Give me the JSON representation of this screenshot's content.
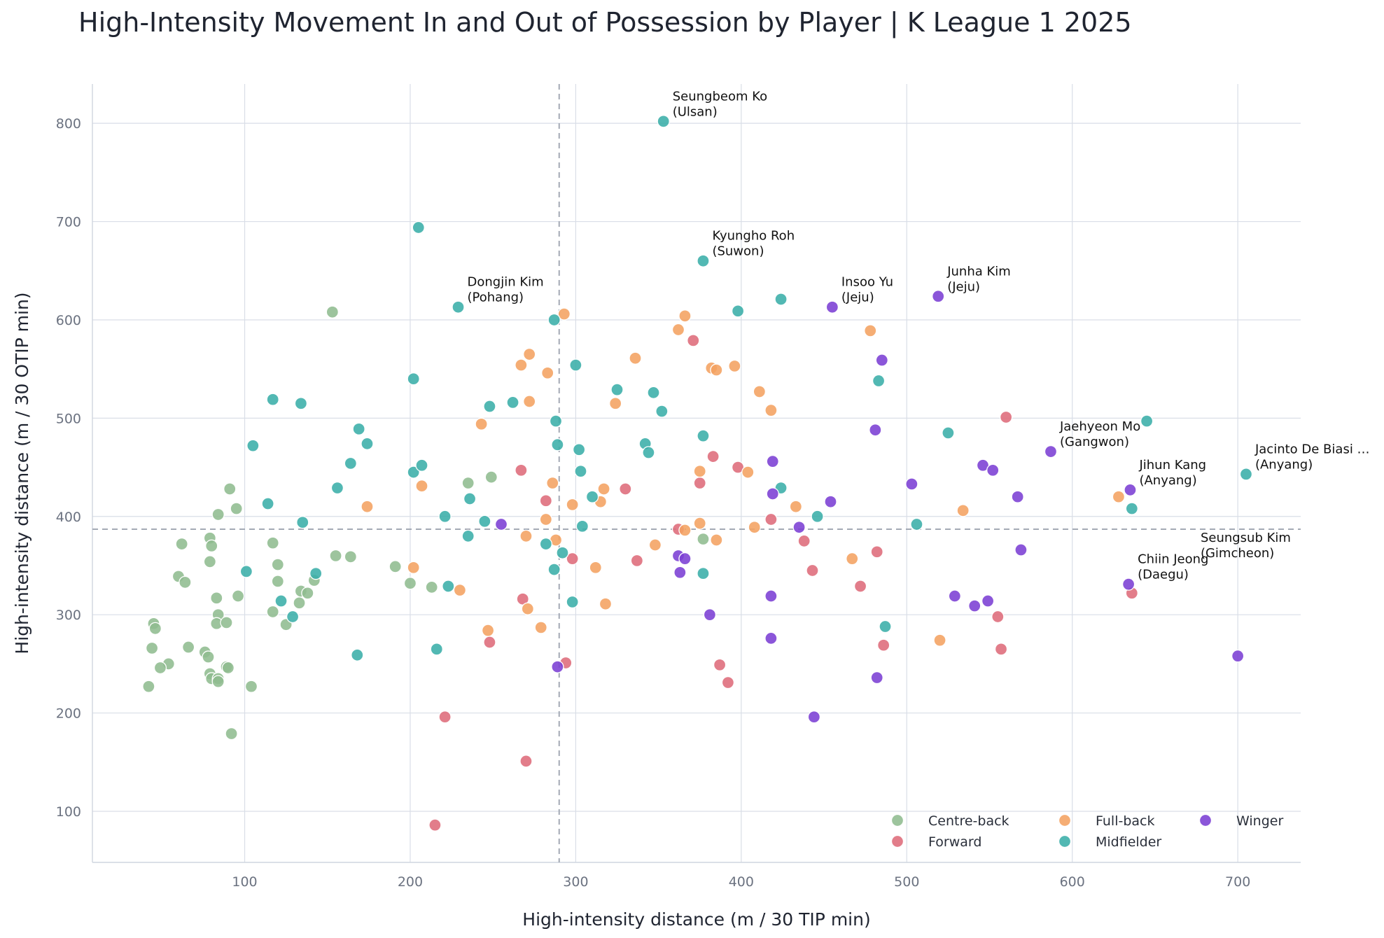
{
  "chart_data": {
    "type": "scatter",
    "title": "High-Intensity Movement In and Out of Possession by Player | K League 1 2025",
    "xlabel": "High-intensity distance (m / 30 TIP min)",
    "ylabel": "High-intensity distance (m / 30 OTIP min)",
    "xlim": [
      8,
      738
    ],
    "ylim": [
      48,
      840
    ],
    "xticks": [
      100,
      200,
      300,
      400,
      500,
      600,
      700
    ],
    "yticks": [
      100,
      200,
      300,
      400,
      500,
      600,
      700,
      800
    ],
    "grid": true,
    "legend_position": "lower-right",
    "reference_lines": {
      "x": 290,
      "y": 387
    },
    "series": [
      {
        "name": "Centre-back",
        "color": "#8fbc8f",
        "points": [
          [
            153,
            608
          ],
          [
            91,
            428
          ],
          [
            95,
            408
          ],
          [
            84,
            402
          ],
          [
            62,
            372
          ],
          [
            79,
            378
          ],
          [
            80,
            370
          ],
          [
            79,
            354
          ],
          [
            60,
            339
          ],
          [
            64,
            333
          ],
          [
            83,
            317
          ],
          [
            84,
            300
          ],
          [
            83,
            291
          ],
          [
            89,
            292
          ],
          [
            45,
            291
          ],
          [
            44,
            266
          ],
          [
            46,
            286
          ],
          [
            66,
            267
          ],
          [
            76,
            262
          ],
          [
            78,
            257
          ],
          [
            79,
            240
          ],
          [
            80,
            235
          ],
          [
            84,
            235
          ],
          [
            84,
            232
          ],
          [
            89,
            247
          ],
          [
            90,
            246
          ],
          [
            54,
            250
          ],
          [
            49,
            246
          ],
          [
            42,
            227
          ],
          [
            104,
            227
          ],
          [
            96,
            319
          ],
          [
            92,
            179
          ],
          [
            117,
            373
          ],
          [
            120,
            351
          ],
          [
            120,
            334
          ],
          [
            117,
            303
          ],
          [
            125,
            290
          ],
          [
            133,
            312
          ],
          [
            134,
            324
          ],
          [
            138,
            322
          ],
          [
            142,
            335
          ],
          [
            155,
            360
          ],
          [
            164,
            359
          ],
          [
            191,
            349
          ],
          [
            200,
            332
          ],
          [
            213,
            328
          ],
          [
            235,
            434
          ],
          [
            249,
            440
          ],
          [
            377,
            377
          ]
        ]
      },
      {
        "name": "Forward",
        "color": "#de6b7a",
        "points": [
          [
            267,
            447
          ],
          [
            282,
            416
          ],
          [
            298,
            357
          ],
          [
            330,
            428
          ],
          [
            268,
            316
          ],
          [
            248,
            272
          ],
          [
            294,
            251
          ],
          [
            221,
            196
          ],
          [
            270,
            151
          ],
          [
            215,
            86
          ],
          [
            337,
            355
          ],
          [
            362,
            387
          ],
          [
            371,
            579
          ],
          [
            375,
            434
          ],
          [
            383,
            461
          ],
          [
            398,
            450
          ],
          [
            418,
            397
          ],
          [
            438,
            375
          ],
          [
            443,
            345
          ],
          [
            472,
            329
          ],
          [
            482,
            364
          ],
          [
            486,
            269
          ],
          [
            387,
            249
          ],
          [
            392,
            231
          ],
          [
            555,
            298
          ],
          [
            557,
            265
          ],
          [
            560,
            501
          ],
          [
            636,
            322
          ]
        ]
      },
      {
        "name": "Full-back",
        "color": "#f4a261",
        "points": [
          [
            174,
            410
          ],
          [
            202,
            348
          ],
          [
            207,
            431
          ],
          [
            230,
            325
          ],
          [
            243,
            494
          ],
          [
            247,
            284
          ],
          [
            267,
            554
          ],
          [
            272,
            565
          ],
          [
            270,
            380
          ],
          [
            271,
            306
          ],
          [
            272,
            517
          ],
          [
            279,
            287
          ],
          [
            282,
            397
          ],
          [
            283,
            546
          ],
          [
            286,
            434
          ],
          [
            288,
            376
          ],
          [
            293,
            606
          ],
          [
            298,
            412
          ],
          [
            312,
            348
          ],
          [
            315,
            415
          ],
          [
            317,
            428
          ],
          [
            318,
            311
          ],
          [
            324,
            515
          ],
          [
            336,
            561
          ],
          [
            348,
            371
          ],
          [
            362,
            590
          ],
          [
            366,
            604
          ],
          [
            366,
            386
          ],
          [
            375,
            393
          ],
          [
            375,
            446
          ],
          [
            382,
            551
          ],
          [
            385,
            549
          ],
          [
            385,
            376
          ],
          [
            396,
            553
          ],
          [
            404,
            445
          ],
          [
            408,
            389
          ],
          [
            411,
            527
          ],
          [
            418,
            508
          ],
          [
            433,
            410
          ],
          [
            467,
            357
          ],
          [
            478,
            589
          ],
          [
            520,
            274
          ],
          [
            534,
            406
          ],
          [
            628,
            420
          ]
        ]
      },
      {
        "name": "Midfielder",
        "color": "#3aaea8",
        "points": [
          [
            105,
            472
          ],
          [
            101,
            344
          ],
          [
            114,
            413
          ],
          [
            117,
            519
          ],
          [
            122,
            314
          ],
          [
            129,
            298
          ],
          [
            134,
            515
          ],
          [
            135,
            394
          ],
          [
            143,
            342
          ],
          [
            156,
            429
          ],
          [
            164,
            454
          ],
          [
            168,
            259
          ],
          [
            169,
            489
          ],
          [
            174,
            474
          ],
          [
            202,
            445
          ],
          [
            202,
            540
          ],
          [
            205,
            694
          ],
          [
            207,
            452
          ],
          [
            216,
            265
          ],
          [
            221,
            400
          ],
          [
            223,
            329
          ],
          [
            229,
            613
          ],
          [
            235,
            380
          ],
          [
            236,
            418
          ],
          [
            245,
            395
          ],
          [
            248,
            512
          ],
          [
            262,
            516
          ],
          [
            282,
            372
          ],
          [
            287,
            600
          ],
          [
            287,
            346
          ],
          [
            288,
            497
          ],
          [
            289,
            473
          ],
          [
            292,
            363
          ],
          [
            298,
            313
          ],
          [
            300,
            554
          ],
          [
            302,
            468
          ],
          [
            303,
            446
          ],
          [
            304,
            390
          ],
          [
            310,
            420
          ],
          [
            325,
            529
          ],
          [
            342,
            474
          ],
          [
            344,
            465
          ],
          [
            347,
            526
          ],
          [
            352,
            507
          ],
          [
            353,
            802
          ],
          [
            377,
            660
          ],
          [
            377,
            482
          ],
          [
            377,
            342
          ],
          [
            398,
            609
          ],
          [
            424,
            621
          ],
          [
            424,
            429
          ],
          [
            446,
            400
          ],
          [
            483,
            538
          ],
          [
            487,
            288
          ],
          [
            506,
            392
          ],
          [
            525,
            485
          ],
          [
            645,
            497
          ],
          [
            636,
            408
          ],
          [
            705,
            443
          ]
        ]
      },
      {
        "name": "Winger",
        "color": "#7b3fd4",
        "points": [
          [
            255,
            392
          ],
          [
            289,
            247
          ],
          [
            362,
            360
          ],
          [
            363,
            343
          ],
          [
            366,
            357
          ],
          [
            381,
            300
          ],
          [
            418,
            319
          ],
          [
            418,
            276
          ],
          [
            419,
            456
          ],
          [
            419,
            423
          ],
          [
            435,
            389
          ],
          [
            444,
            196
          ],
          [
            454,
            415
          ],
          [
            455,
            613
          ],
          [
            481,
            488
          ],
          [
            482,
            236
          ],
          [
            485,
            559
          ],
          [
            503,
            433
          ],
          [
            519,
            624
          ],
          [
            529,
            319
          ],
          [
            541,
            309
          ],
          [
            546,
            452
          ],
          [
            549,
            314
          ],
          [
            552,
            447
          ],
          [
            567,
            420
          ],
          [
            569,
            366
          ],
          [
            587,
            466
          ],
          [
            634,
            331
          ],
          [
            635,
            427
          ],
          [
            700,
            258
          ]
        ]
      }
    ],
    "annotations": [
      {
        "lines": [
          "Seungbeom Ko",
          "(Ulsan)"
        ],
        "x": 353,
        "y": 802
      },
      {
        "lines": [
          "Kyungho Roh",
          "(Suwon)"
        ],
        "x": 377,
        "y": 660
      },
      {
        "lines": [
          "Dongjin Kim",
          "(Pohang)"
        ],
        "x": 229,
        "y": 613
      },
      {
        "lines": [
          "Insoo Yu",
          "(Jeju)"
        ],
        "x": 455,
        "y": 613
      },
      {
        "lines": [
          "Junha Kim",
          "(Jeju)"
        ],
        "x": 519,
        "y": 624
      },
      {
        "lines": [
          "Jaehyeon Mo",
          "(Gangwon)"
        ],
        "x": 587,
        "y": 466
      },
      {
        "lines": [
          "Jacinto De Biasi …",
          "(Anyang)"
        ],
        "x": 705,
        "y": 443
      },
      {
        "lines": [
          "Jihun Kang",
          "(Anyang)"
        ],
        "x": 635,
        "y": 427
      },
      {
        "lines": [
          "Seungsub Kim",
          "(Gimcheon)"
        ],
        "x": 672,
        "y": 353
      },
      {
        "lines": [
          "Chiin Jeong",
          "(Daegu)"
        ],
        "x": 634,
        "y": 331
      }
    ]
  }
}
